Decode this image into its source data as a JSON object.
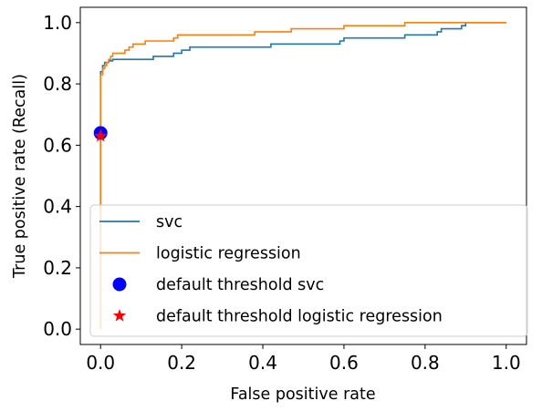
{
  "chart_data": {
    "type": "line",
    "xlabel": "False positive rate",
    "ylabel": "True positive rate (Recall)",
    "xlim": [
      -0.05,
      1.05
    ],
    "ylim": [
      -0.05,
      1.05
    ],
    "xticks": [
      0.0,
      0.2,
      0.4,
      0.6,
      0.8,
      1.0
    ],
    "yticks": [
      0.0,
      0.2,
      0.4,
      0.6,
      0.8,
      1.0
    ],
    "xtick_labels": [
      "0.0",
      "0.2",
      "0.4",
      "0.6",
      "0.8",
      "1.0"
    ],
    "ytick_labels": [
      "0.0",
      "0.2",
      "0.4",
      "0.6",
      "0.8",
      "1.0"
    ],
    "grid": false,
    "legend_position": "lower-right",
    "series": [
      {
        "name": "svc",
        "kind": "line",
        "color": "#1f77b4",
        "points": [
          [
            0.0,
            0.0
          ],
          [
            0.0,
            0.84
          ],
          [
            0.005,
            0.84
          ],
          [
            0.005,
            0.86
          ],
          [
            0.01,
            0.86
          ],
          [
            0.01,
            0.87
          ],
          [
            0.02,
            0.87
          ],
          [
            0.02,
            0.875
          ],
          [
            0.03,
            0.875
          ],
          [
            0.03,
            0.88
          ],
          [
            0.13,
            0.88
          ],
          [
            0.13,
            0.89
          ],
          [
            0.18,
            0.89
          ],
          [
            0.18,
            0.9
          ],
          [
            0.2,
            0.9
          ],
          [
            0.2,
            0.91
          ],
          [
            0.22,
            0.91
          ],
          [
            0.22,
            0.92
          ],
          [
            0.42,
            0.92
          ],
          [
            0.42,
            0.93
          ],
          [
            0.59,
            0.93
          ],
          [
            0.59,
            0.94
          ],
          [
            0.6,
            0.94
          ],
          [
            0.6,
            0.95
          ],
          [
            0.75,
            0.95
          ],
          [
            0.75,
            0.96
          ],
          [
            0.83,
            0.96
          ],
          [
            0.83,
            0.97
          ],
          [
            0.84,
            0.97
          ],
          [
            0.84,
            0.98
          ],
          [
            0.89,
            0.98
          ],
          [
            0.89,
            0.99
          ],
          [
            0.9,
            0.99
          ],
          [
            0.9,
            1.0
          ],
          [
            1.0,
            1.0
          ]
        ]
      },
      {
        "name": "logistic regression",
        "kind": "line",
        "color": "#ff7f0e",
        "points": [
          [
            0.0,
            0.0
          ],
          [
            0.0,
            0.83
          ],
          [
            0.005,
            0.83
          ],
          [
            0.005,
            0.85
          ],
          [
            0.01,
            0.85
          ],
          [
            0.01,
            0.86
          ],
          [
            0.015,
            0.86
          ],
          [
            0.015,
            0.87
          ],
          [
            0.02,
            0.87
          ],
          [
            0.02,
            0.88
          ],
          [
            0.025,
            0.88
          ],
          [
            0.025,
            0.89
          ],
          [
            0.03,
            0.89
          ],
          [
            0.03,
            0.9
          ],
          [
            0.06,
            0.9
          ],
          [
            0.06,
            0.91
          ],
          [
            0.07,
            0.91
          ],
          [
            0.07,
            0.92
          ],
          [
            0.08,
            0.92
          ],
          [
            0.08,
            0.93
          ],
          [
            0.11,
            0.93
          ],
          [
            0.11,
            0.94
          ],
          [
            0.18,
            0.94
          ],
          [
            0.18,
            0.95
          ],
          [
            0.19,
            0.95
          ],
          [
            0.19,
            0.96
          ],
          [
            0.38,
            0.96
          ],
          [
            0.38,
            0.97
          ],
          [
            0.47,
            0.97
          ],
          [
            0.47,
            0.98
          ],
          [
            0.6,
            0.98
          ],
          [
            0.6,
            0.99
          ],
          [
            0.75,
            0.99
          ],
          [
            0.75,
            1.0
          ],
          [
            1.0,
            1.0
          ]
        ]
      },
      {
        "name": "default threshold svc",
        "kind": "marker",
        "marker": "circle",
        "color": "#0000ff",
        "x": 0.0,
        "y": 0.64
      },
      {
        "name": "default threshold logistic regression",
        "kind": "marker",
        "marker": "star",
        "color": "#ff0000",
        "x": 0.0,
        "y": 0.63
      }
    ]
  }
}
